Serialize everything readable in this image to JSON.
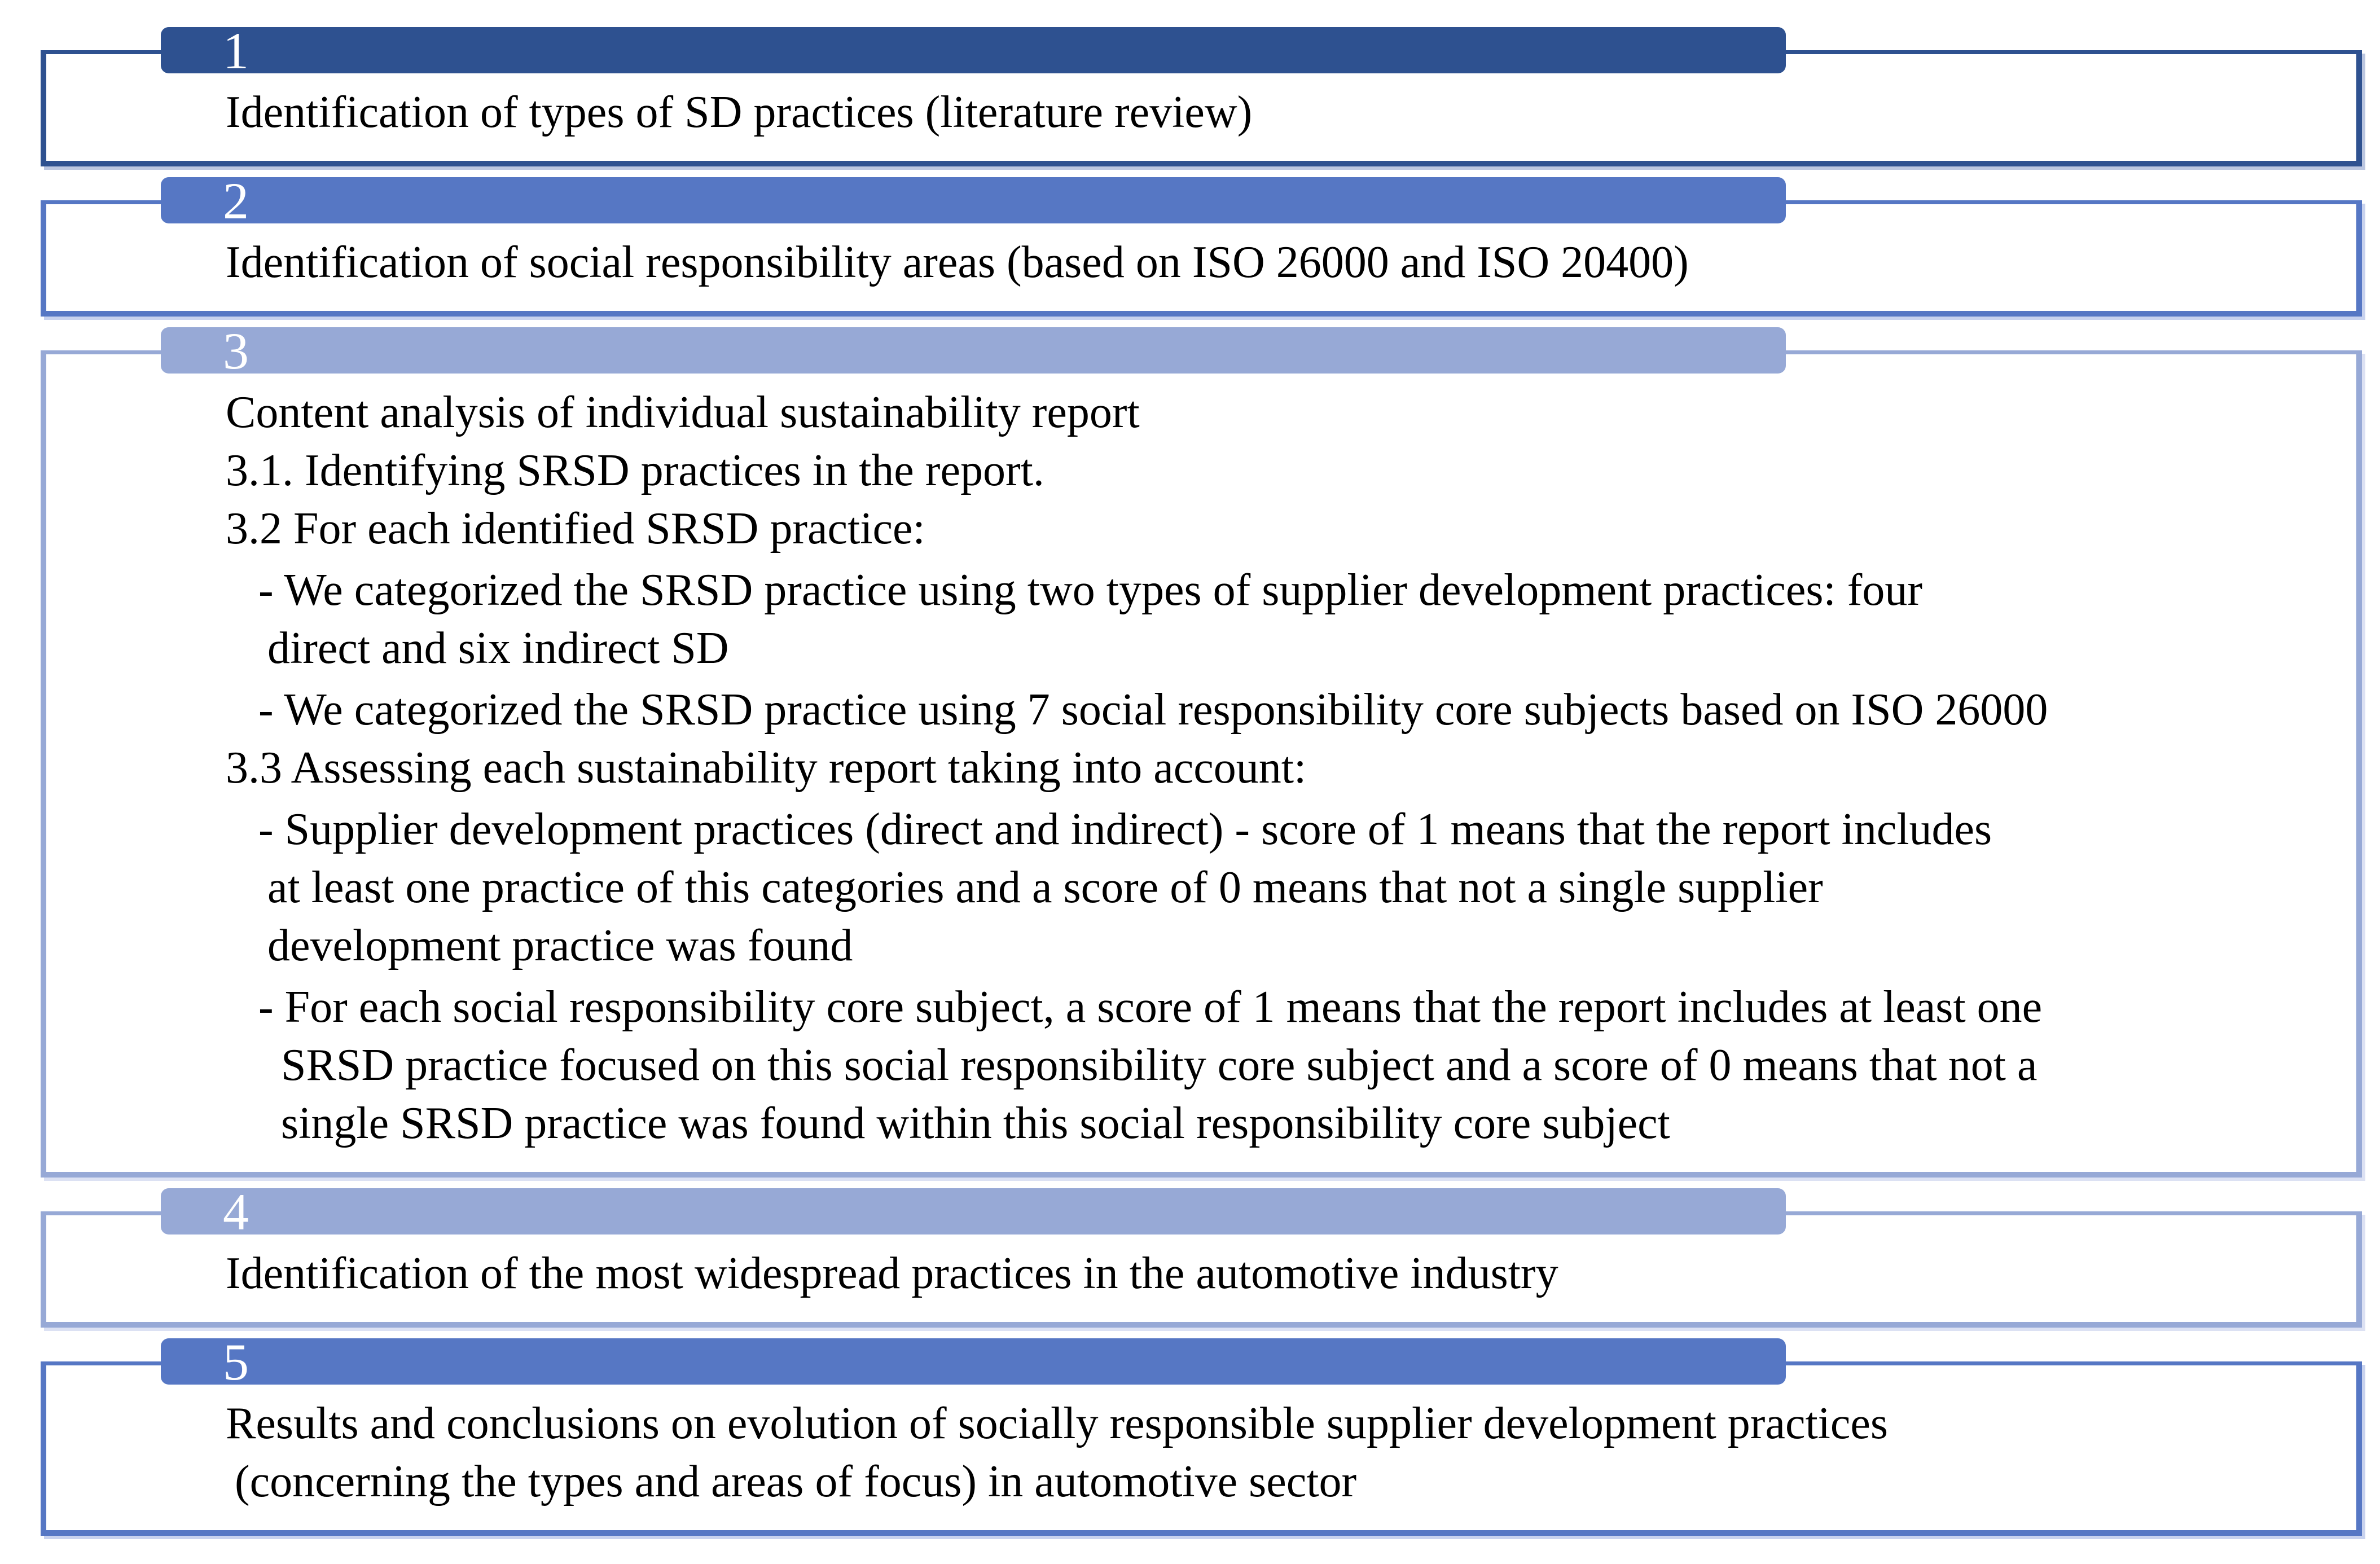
{
  "figure": {
    "description": "Five-step research methodology process diagram",
    "colors": {
      "background": "#FFFFFF",
      "text": "#000000",
      "number_text": "#FFFFFF",
      "step_dark": "#2E5190",
      "step_medium": "#5677C4",
      "step_light": "#97A9D6",
      "outline_tint_dark": "#BBC6E0",
      "outline_tint_medium": "#C8D2EE",
      "outline_tint_light": "#DCE1F3"
    },
    "steps": [
      {
        "number": "1",
        "tone": "dark",
        "lines": [
          {
            "text": "Identification of types of SD practices (literature review)",
            "indent": 0
          }
        ]
      },
      {
        "number": "2",
        "tone": "medium",
        "lines": [
          {
            "text": "Identification of social responsibility areas (based on ISO 26000 and ISO 20400)",
            "indent": 0
          }
        ]
      },
      {
        "number": "3",
        "tone": "light",
        "lines": [
          {
            "text": "Content analysis of individual sustainability report",
            "indent": 0
          },
          {
            "text": "3.1. Identifying SRSD practices in the report.",
            "indent": 0
          },
          {
            "text": "3.2 For each identified SRSD practice:",
            "indent": 0
          },
          {
            "text": "- We categorized the SRSD practice using two types of supplier development practices: four",
            "indent": 1
          },
          {
            "text": "direct and six indirect SD",
            "indent": 2
          },
          {
            "text": "- We categorized the SRSD practice using 7 social responsibility core subjects based on ISO 26000",
            "indent": 1
          },
          {
            "text": "3.3 Assessing each sustainability report taking into account:",
            "indent": 0
          },
          {
            "text": "- Supplier development practices (direct and indirect) - score of 1 means that the report includes",
            "indent": 1
          },
          {
            "text": "at least one practice of this categories and a score of 0 means that not a single supplier",
            "indent": 2
          },
          {
            "text": "development practice was found",
            "indent": 2
          },
          {
            "text": "- For each social responsibility core subject, a score of 1 means that the report includes at least one",
            "indent": 1
          },
          {
            "text": "SRSD practice focused on this social responsibility core subject and a score of 0 means that not a",
            "indent": 3
          },
          {
            "text": "single SRSD practice was found within this social responsibility core subject",
            "indent": 3
          }
        ]
      },
      {
        "number": "4",
        "tone": "light",
        "lines": [
          {
            "text": "Identification of the most widespread practices in the automotive industry",
            "indent": 0
          }
        ]
      },
      {
        "number": "5",
        "tone": "medium",
        "lines": [
          {
            "text": "Results and conclusions on evolution of socially responsible supplier development practices",
            "indent": 0
          },
          {
            "text": "(concerning the types and areas of focus) in automotive sector",
            "indent": 4
          }
        ]
      }
    ]
  }
}
